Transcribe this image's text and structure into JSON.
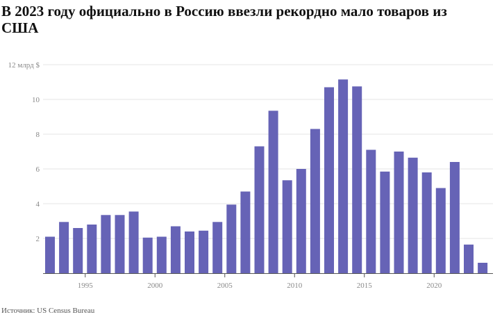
{
  "title": "В 2023 году официально в Россию ввезли рекордно мало товаров из США",
  "source": "Источник: US Census Bureau",
  "colors": {
    "bar": "#6663b6",
    "grid": "#e6e6e6",
    "axis": "#555555",
    "tick_text": "#888888"
  },
  "chart_data": {
    "type": "bar",
    "title": "В 2023 году официально в Россию ввезли рекордно мало товаров из США",
    "ylabel": "",
    "xlabel": "",
    "y_unit_label": "12 млрд $",
    "ylim": [
      0,
      12
    ],
    "yticks": [
      2,
      4,
      6,
      8,
      10,
      12
    ],
    "ytick_labels": [
      "2",
      "4",
      "6",
      "8",
      "10",
      "12 млрд $"
    ],
    "xticks": [
      1995,
      2000,
      2005,
      2010,
      2015,
      2020
    ],
    "xtick_labels": [
      "1995",
      "2000",
      "2005",
      "2010",
      "2015",
      "2020"
    ],
    "grid": true,
    "categories": [
      1992,
      1993,
      1994,
      1995,
      1996,
      1997,
      1998,
      1999,
      2000,
      2001,
      2002,
      2003,
      2004,
      2005,
      2006,
      2007,
      2008,
      2009,
      2010,
      2011,
      2012,
      2013,
      2014,
      2015,
      2016,
      2017,
      2018,
      2019,
      2020,
      2021,
      2022,
      2023
    ],
    "values": [
      2.1,
      2.95,
      2.6,
      2.8,
      3.35,
      3.35,
      3.55,
      2.05,
      2.1,
      2.7,
      2.4,
      2.45,
      2.95,
      3.95,
      4.7,
      7.3,
      9.35,
      5.35,
      6.0,
      8.3,
      10.7,
      11.15,
      10.75,
      7.1,
      5.85,
      7.0,
      6.65,
      5.8,
      4.9,
      6.4,
      1.65,
      0.6
    ]
  }
}
